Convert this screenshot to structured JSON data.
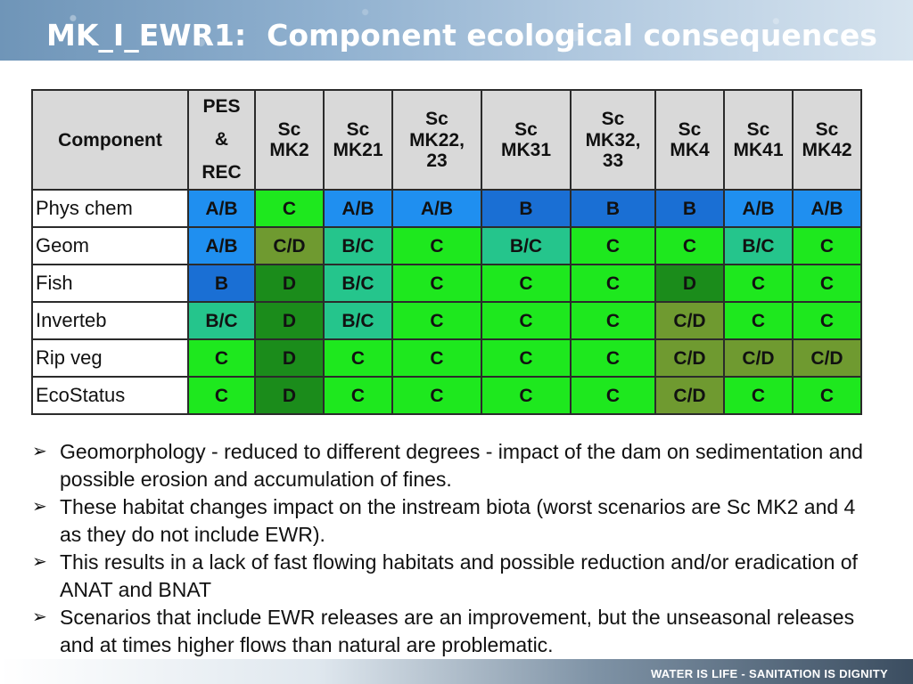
{
  "header": {
    "title": "MK_I_EWR1:  Component ecological consequences"
  },
  "colors": {
    "A/B": "#1f8ff0",
    "B": "#1a6fd4",
    "B/C": "#25c58c",
    "C": "#1ee81e",
    "C/D": "#6f9a30",
    "D": "#1b8c1b",
    "header_gray": "#d9d9d9"
  },
  "table": {
    "columns": [
      {
        "lines": [
          "Component"
        ]
      },
      {
        "lines": [
          "PES",
          "&",
          "REC"
        ]
      },
      {
        "lines": [
          "Sc",
          "MK2"
        ]
      },
      {
        "lines": [
          "Sc",
          "MK21"
        ]
      },
      {
        "lines": [
          "Sc",
          "MK22,",
          "23"
        ]
      },
      {
        "lines": [
          "Sc",
          "MK31"
        ]
      },
      {
        "lines": [
          "Sc",
          "MK32,",
          "33"
        ]
      },
      {
        "lines": [
          "Sc",
          "MK4"
        ]
      },
      {
        "lines": [
          "Sc",
          "MK41"
        ]
      },
      {
        "lines": [
          "Sc",
          "MK42"
        ]
      }
    ],
    "rows": [
      {
        "label": "Phys chem",
        "cells": [
          "A/B",
          "C",
          "A/B",
          "A/B",
          "B",
          "B",
          "B",
          "A/B",
          "A/B"
        ]
      },
      {
        "label": "Geom",
        "cells": [
          "A/B",
          "C/D",
          "B/C",
          "C",
          "B/C",
          "C",
          "C",
          "B/C",
          "C"
        ]
      },
      {
        "label": "Fish",
        "cells": [
          "B",
          "D",
          "B/C",
          "C",
          "C",
          "C",
          "D",
          "C",
          "C"
        ]
      },
      {
        "label": "Inverteb",
        "cells": [
          "B/C",
          "D",
          "B/C",
          "C",
          "C",
          "C",
          "C/D",
          "C",
          "C"
        ]
      },
      {
        "label": "Rip veg",
        "cells": [
          "C",
          "D",
          "C",
          "C",
          "C",
          "C",
          "C/D",
          "C/D",
          "C/D"
        ]
      },
      {
        "label": "EcoStatus",
        "cells": [
          "C",
          "D",
          "C",
          "C",
          "C",
          "C",
          "C/D",
          "C",
          "C"
        ]
      }
    ]
  },
  "bullets": [
    "Geomorphology  - reduced to different degrees - impact of the dam on sedimentation and possible erosion and accumulation of fines.",
    "These habitat changes impact on the instream biota (worst scenarios are Sc MK2 and 4 as they do not include EWR).",
    "This results in a lack of fast flowing habitats and possible reduction and/or eradication of ANAT and BNAT",
    "Scenarios that include EWR releases are an improvement, but the unseasonal releases and at times higher flows than natural are problematic."
  ],
  "footer": {
    "text": "WATER IS LIFE - SANITATION IS DIGNITY"
  },
  "icons": {
    "bullet": "arrow-bullet-icon"
  }
}
